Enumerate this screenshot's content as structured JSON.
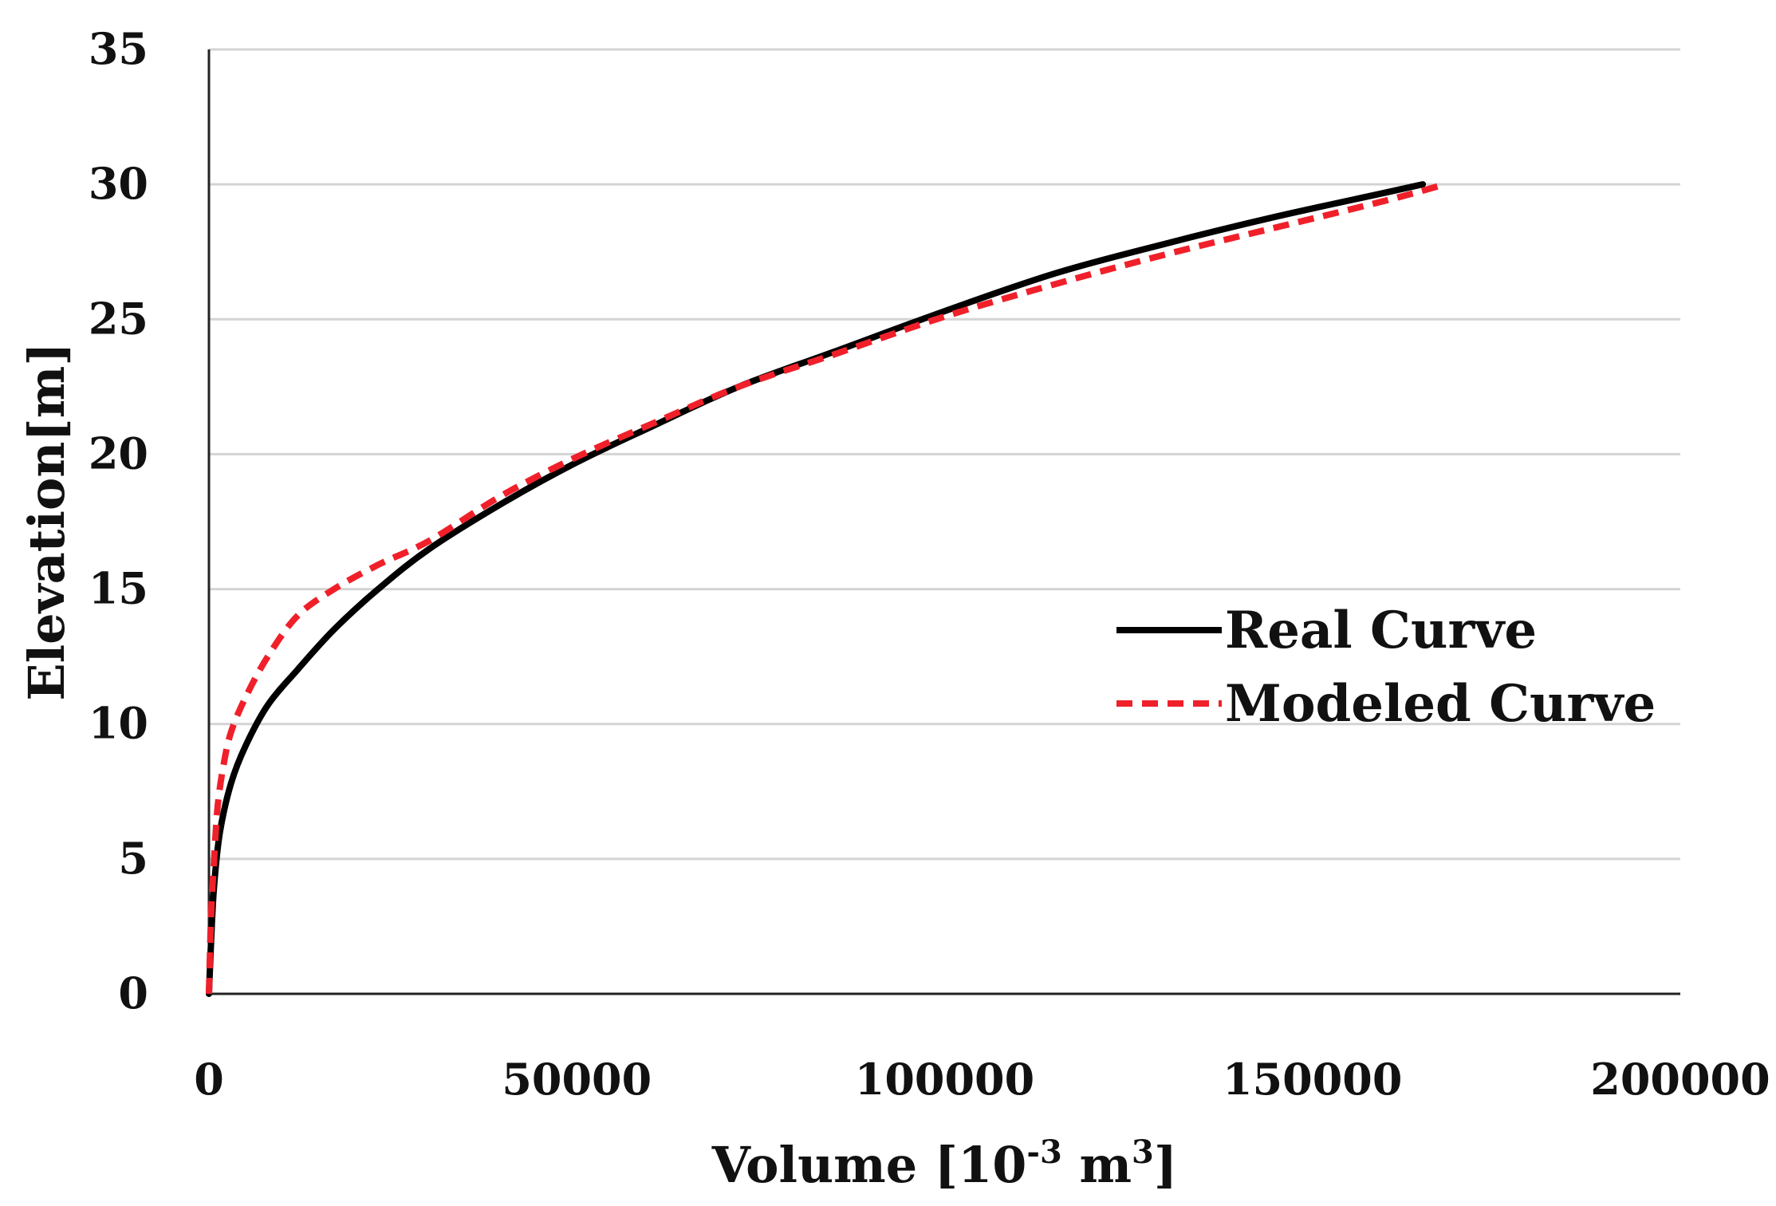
{
  "chart_data": {
    "type": "line",
    "title": "",
    "xlabel": "Volume [10-3 m3]",
    "xlabel_parts": {
      "main": "Volume [10",
      "sup1": "-3",
      "unit": " m",
      "sup2": "3",
      "close": "]"
    },
    "ylabel": "Elevation[m]",
    "xlim": [
      0,
      200000
    ],
    "ylim": [
      0,
      35
    ],
    "xticks": [
      0,
      50000,
      100000,
      150000,
      200000
    ],
    "xtick_labels": [
      "0",
      "50000",
      "100000",
      "150000",
      "200000"
    ],
    "yticks": [
      0,
      5,
      10,
      15,
      20,
      25,
      30,
      35
    ],
    "ytick_labels": [
      "0",
      "5",
      "10",
      "15",
      "20",
      "25",
      "30",
      "35"
    ],
    "grid": "horizontal",
    "legend_position": "right-middle",
    "series": [
      {
        "name": "Real Curve",
        "color": "#000000",
        "style": "solid",
        "points": [
          [
            0,
            0
          ],
          [
            300,
            2
          ],
          [
            700,
            4
          ],
          [
            1500,
            6
          ],
          [
            3000,
            7.8
          ],
          [
            5000,
            9.2
          ],
          [
            8000,
            10.7
          ],
          [
            12000,
            12
          ],
          [
            17000,
            13.5
          ],
          [
            23000,
            15
          ],
          [
            30000,
            16.5
          ],
          [
            40000,
            18.2
          ],
          [
            50000,
            19.7
          ],
          [
            60000,
            21
          ],
          [
            72000,
            22.5
          ],
          [
            85000,
            23.8
          ],
          [
            100000,
            25.3
          ],
          [
            115000,
            26.7
          ],
          [
            130000,
            27.8
          ],
          [
            145000,
            28.8
          ],
          [
            160000,
            29.7
          ],
          [
            165000,
            30
          ]
        ]
      },
      {
        "name": "Modeled Curve",
        "color": "#f0202a",
        "style": "dashed",
        "points": [
          [
            0,
            0
          ],
          [
            300,
            3
          ],
          [
            700,
            5
          ],
          [
            1200,
            7
          ],
          [
            2000,
            8.5
          ],
          [
            3000,
            9.7
          ],
          [
            5000,
            11
          ],
          [
            8000,
            12.5
          ],
          [
            12000,
            14
          ],
          [
            17000,
            15
          ],
          [
            23000,
            15.9
          ],
          [
            30000,
            16.8
          ],
          [
            40000,
            18.5
          ],
          [
            50000,
            19.9
          ],
          [
            60000,
            21.1
          ],
          [
            72000,
            22.5
          ],
          [
            85000,
            23.7
          ],
          [
            100000,
            25.1
          ],
          [
            115000,
            26.3
          ],
          [
            130000,
            27.4
          ],
          [
            145000,
            28.4
          ],
          [
            160000,
            29.4
          ],
          [
            168000,
            30
          ]
        ]
      }
    ]
  }
}
